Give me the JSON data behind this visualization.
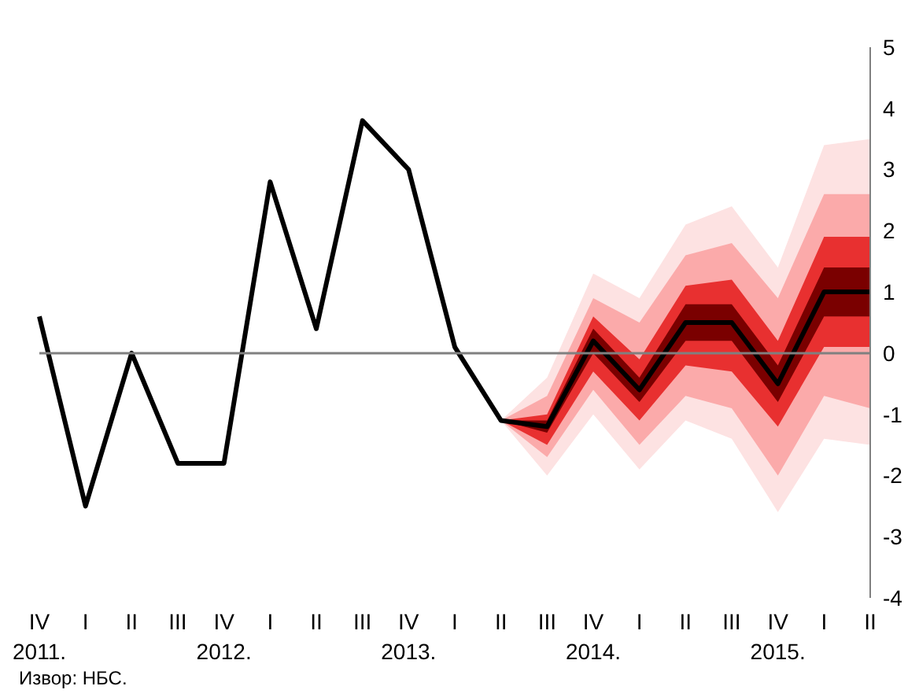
{
  "chart_data": {
    "type": "line",
    "categories": [
      "IV 2011.",
      "I",
      "II",
      "III",
      "IV 2012.",
      "I",
      "II",
      "III",
      "IV 2013.",
      "I",
      "II",
      "III",
      "IV 2014.",
      "I",
      "II",
      "III",
      "IV 2015.",
      "I",
      "II"
    ],
    "series": [
      {
        "type": "area",
        "color": "#fde2e2",
        "values": [
          null,
          null,
          null,
          null,
          null,
          null,
          null,
          null,
          null,
          null,
          null,
          null,
          null,
          null,
          null,
          null,
          null,
          null,
          null
        ],
        "lower": [
          null,
          null,
          null,
          null,
          null,
          null,
          null,
          null,
          null,
          null,
          -1.1,
          -2.0,
          -1.0,
          -1.9,
          -1.1,
          -1.4,
          -2.6,
          -1.4,
          -1.5
        ],
        "upper": [
          null,
          null,
          null,
          null,
          null,
          null,
          null,
          null,
          null,
          null,
          -1.1,
          -0.4,
          1.3,
          0.9,
          2.1,
          2.4,
          1.4,
          3.4,
          3.5
        ]
      },
      {
        "type": "area",
        "color": "#fbaaaa",
        "values": [
          null,
          null,
          null,
          null,
          null,
          null,
          null,
          null,
          null,
          null,
          null,
          null,
          null,
          null,
          null,
          null,
          null,
          null,
          null
        ],
        "lower": [
          null,
          null,
          null,
          null,
          null,
          null,
          null,
          null,
          null,
          null,
          -1.1,
          -1.7,
          -0.6,
          -1.5,
          -0.7,
          -0.9,
          -2.0,
          -0.7,
          -0.9
        ],
        "upper": [
          null,
          null,
          null,
          null,
          null,
          null,
          null,
          null,
          null,
          null,
          -1.1,
          -0.7,
          0.9,
          0.5,
          1.6,
          1.8,
          0.9,
          2.6,
          2.6
        ]
      },
      {
        "type": "area",
        "color": "#e83030",
        "values": [
          null,
          null,
          null,
          null,
          null,
          null,
          null,
          null,
          null,
          null,
          null,
          null,
          null,
          null,
          null,
          null,
          null,
          null,
          null
        ],
        "lower": [
          null,
          null,
          null,
          null,
          null,
          null,
          null,
          null,
          null,
          null,
          -1.1,
          -1.5,
          -0.3,
          -1.1,
          -0.2,
          -0.3,
          -1.2,
          0.1,
          0.1
        ],
        "upper": [
          null,
          null,
          null,
          null,
          null,
          null,
          null,
          null,
          null,
          null,
          -1.1,
          -1.0,
          0.6,
          -0.1,
          1.1,
          1.2,
          0.2,
          1.9,
          1.9
        ]
      },
      {
        "type": "area",
        "color": "#7a0000",
        "values": [
          null,
          null,
          null,
          null,
          null,
          null,
          null,
          null,
          null,
          null,
          null,
          null,
          null,
          null,
          null,
          null,
          null,
          null,
          null
        ],
        "lower": [
          null,
          null,
          null,
          null,
          null,
          null,
          null,
          null,
          null,
          null,
          -1.1,
          -1.3,
          0.0,
          -0.8,
          0.2,
          0.2,
          -0.8,
          0.6,
          0.6
        ],
        "upper": [
          null,
          null,
          null,
          null,
          null,
          null,
          null,
          null,
          null,
          null,
          -1.1,
          -1.1,
          0.4,
          -0.4,
          0.8,
          0.8,
          -0.2,
          1.4,
          1.4
        ]
      },
      {
        "type": "line",
        "color": "#000000",
        "values": [
          0.6,
          -2.5,
          0.0,
          -1.8,
          -1.8,
          2.8,
          0.4,
          3.8,
          3.0,
          0.1,
          -1.1,
          -1.2,
          0.2,
          -0.6,
          0.5,
          0.5,
          -0.5,
          1.0,
          1.0
        ]
      }
    ],
    "ylim": [
      -4,
      5
    ],
    "yticks": [
      -4,
      -3,
      -2,
      -1,
      0,
      1,
      2,
      3,
      4,
      5
    ],
    "ref_lines": [
      {
        "axis": "y",
        "value": 0,
        "color": "#808080"
      }
    ],
    "annotations": [
      "Извор: НБС."
    ]
  }
}
